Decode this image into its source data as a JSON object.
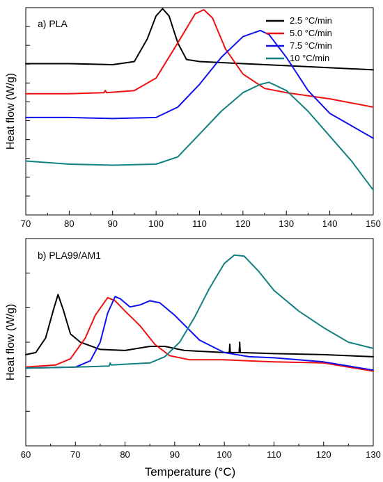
{
  "chart_data": [
    {
      "type": "line",
      "title": "a) PLA",
      "xlabel": "",
      "ylabel": "Heat flow (W/g)",
      "xlim": [
        70,
        150
      ],
      "ylim": [
        0,
        10
      ],
      "xticks": [
        "70",
        "80",
        "90",
        "100",
        "110",
        "120",
        "130",
        "140",
        "150"
      ],
      "y_tick_labels": "none",
      "legend_placement": "top-right",
      "grid": false,
      "series": [
        {
          "name": "2.5  °C/min",
          "color": "#000000",
          "points": [
            [
              70,
              7.3
            ],
            [
              80,
              7.3
            ],
            [
              90,
              7.25
            ],
            [
              95,
              7.4
            ],
            [
              98,
              8.5
            ],
            [
              100,
              9.6
            ],
            [
              101.5,
              9.95
            ],
            [
              103,
              9.6
            ],
            [
              105,
              8.3
            ],
            [
              107,
              7.5
            ],
            [
              110,
              7.4
            ],
            [
              120,
              7.3
            ],
            [
              130,
              7.2
            ],
            [
              140,
              7.1
            ],
            [
              150,
              7.0
            ]
          ]
        },
        {
          "name": "5.0 °C/min",
          "color": "#ee1111",
          "points": [
            [
              70,
              5.85
            ],
            [
              80,
              5.85
            ],
            [
              88,
              5.9
            ],
            [
              88.3,
              6.0
            ],
            [
              88.6,
              5.9
            ],
            [
              95,
              6.0
            ],
            [
              100,
              6.6
            ],
            [
              105,
              8.3
            ],
            [
              109,
              9.7
            ],
            [
              111,
              9.9
            ],
            [
              113,
              9.5
            ],
            [
              116,
              8.0
            ],
            [
              120,
              6.8
            ],
            [
              125,
              6.1
            ],
            [
              130,
              5.9
            ],
            [
              140,
              5.6
            ],
            [
              150,
              5.2
            ]
          ]
        },
        {
          "name": "7.5 °C/min",
          "color": "#1111ee",
          "points": [
            [
              70,
              4.7
            ],
            [
              80,
              4.7
            ],
            [
              90,
              4.65
            ],
            [
              100,
              4.7
            ],
            [
              105,
              5.2
            ],
            [
              110,
              6.3
            ],
            [
              115,
              7.6
            ],
            [
              120,
              8.6
            ],
            [
              124,
              8.9
            ],
            [
              126,
              8.7
            ],
            [
              130,
              7.6
            ],
            [
              135,
              6.0
            ],
            [
              140,
              4.9
            ],
            [
              145,
              4.3
            ],
            [
              150,
              3.7
            ]
          ]
        },
        {
          "name": "10 °C/min",
          "color": "#128080",
          "points": [
            [
              70,
              2.6
            ],
            [
              80,
              2.45
            ],
            [
              90,
              2.4
            ],
            [
              100,
              2.45
            ],
            [
              105,
              2.8
            ],
            [
              110,
              3.9
            ],
            [
              115,
              5.0
            ],
            [
              120,
              5.9
            ],
            [
              124,
              6.3
            ],
            [
              126,
              6.4
            ],
            [
              130,
              6.0
            ],
            [
              135,
              5.0
            ],
            [
              140,
              3.8
            ],
            [
              145,
              2.6
            ],
            [
              150,
              1.2
            ]
          ]
        }
      ]
    },
    {
      "type": "line",
      "title": "b) PLA99/AM1",
      "xlabel": "Temperature (°C)",
      "ylabel": "Heat flow (W/g)",
      "xlim": [
        60,
        130
      ],
      "ylim": [
        0,
        10
      ],
      "xticks": [
        "60",
        "70",
        "80",
        "90",
        "100",
        "110",
        "120",
        "130"
      ],
      "y_tick_labels": "none",
      "grid": false,
      "series": [
        {
          "name": "2.5  °C/min",
          "color": "#000000",
          "points": [
            [
              60,
              4.4
            ],
            [
              62,
              4.5
            ],
            [
              64,
              5.2
            ],
            [
              65.5,
              6.5
            ],
            [
              66.5,
              7.3
            ],
            [
              67.5,
              6.6
            ],
            [
              69,
              5.4
            ],
            [
              71,
              5.0
            ],
            [
              75,
              4.65
            ],
            [
              80,
              4.6
            ],
            [
              85,
              4.8
            ],
            [
              88,
              4.8
            ],
            [
              92,
              4.6
            ],
            [
              100,
              4.5
            ],
            [
              101,
              4.5
            ],
            [
              101.1,
              4.9
            ],
            [
              101.2,
              4.5
            ],
            [
              103,
              4.5
            ],
            [
              103.1,
              5.0
            ],
            [
              103.2,
              4.5
            ],
            [
              110,
              4.45
            ],
            [
              120,
              4.4
            ],
            [
              130,
              4.3
            ]
          ]
        },
        {
          "name": "5.0 °C/min",
          "color": "#ee1111",
          "points": [
            [
              60,
              3.8
            ],
            [
              66,
              3.9
            ],
            [
              69,
              4.2
            ],
            [
              72,
              5.2
            ],
            [
              74,
              6.3
            ],
            [
              76.5,
              7.15
            ],
            [
              78,
              7.0
            ],
            [
              80,
              6.5
            ],
            [
              83,
              5.8
            ],
            [
              86,
              4.9
            ],
            [
              89,
              4.35
            ],
            [
              93,
              4.15
            ],
            [
              100,
              4.15
            ],
            [
              110,
              4.05
            ],
            [
              120,
              4.0
            ],
            [
              130,
              3.6
            ]
          ]
        },
        {
          "name": "7.5 °C/min",
          "color": "#1111ee",
          "points": [
            [
              60,
              3.75
            ],
            [
              70,
              3.8
            ],
            [
              73,
              4.1
            ],
            [
              75,
              5.0
            ],
            [
              76.5,
              6.4
            ],
            [
              78,
              7.2
            ],
            [
              79,
              7.1
            ],
            [
              81,
              6.7
            ],
            [
              83,
              6.8
            ],
            [
              85,
              7.0
            ],
            [
              87,
              6.9
            ],
            [
              90,
              6.3
            ],
            [
              95,
              5.1
            ],
            [
              100,
              4.5
            ],
            [
              105,
              4.3
            ],
            [
              110,
              4.25
            ],
            [
              120,
              4.05
            ],
            [
              130,
              3.65
            ]
          ]
        },
        {
          "name": "10 °C/min",
          "color": "#128080",
          "points": [
            [
              60,
              3.75
            ],
            [
              70,
              3.8
            ],
            [
              76.8,
              3.85
            ],
            [
              77,
              4.0
            ],
            [
              77.2,
              3.9
            ],
            [
              85,
              4.0
            ],
            [
              88,
              4.3
            ],
            [
              91,
              5.0
            ],
            [
              94,
              6.2
            ],
            [
              97,
              7.6
            ],
            [
              100,
              8.8
            ],
            [
              102,
              9.2
            ],
            [
              104,
              9.15
            ],
            [
              107,
              8.4
            ],
            [
              110,
              7.5
            ],
            [
              115,
              6.5
            ],
            [
              120,
              5.7
            ],
            [
              125,
              5.0
            ],
            [
              130,
              4.7
            ]
          ]
        }
      ]
    }
  ]
}
